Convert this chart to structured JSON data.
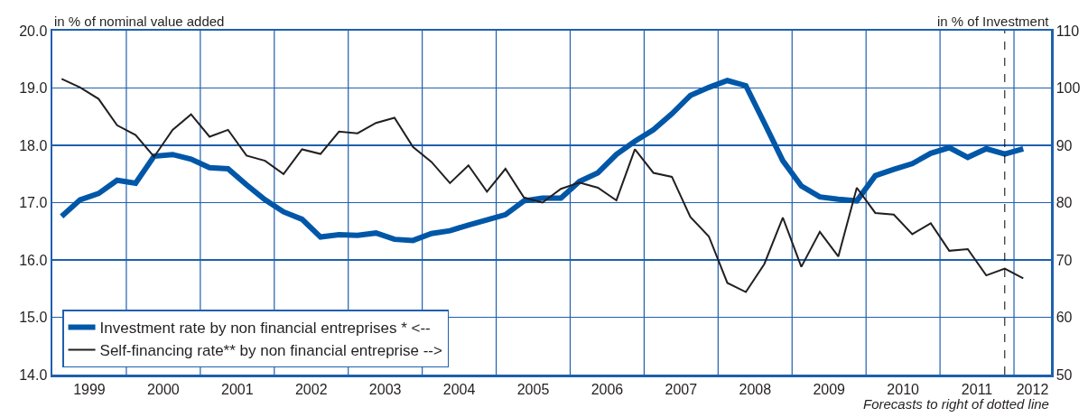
{
  "chart_data": {
    "type": "line",
    "ylabel": "in % of nominal value added",
    "y2label": "in % of Investment",
    "annotations": [
      "Forecasts to right of dotted line"
    ],
    "x": [
      1999.125,
      1999.375,
      1999.625,
      1999.875,
      2000.125,
      2000.375,
      2000.625,
      2000.875,
      2001.125,
      2001.375,
      2001.625,
      2001.875,
      2002.125,
      2002.375,
      2002.625,
      2002.875,
      2003.125,
      2003.375,
      2003.625,
      2003.875,
      2004.125,
      2004.375,
      2004.625,
      2004.875,
      2005.125,
      2005.375,
      2005.625,
      2005.875,
      2006.125,
      2006.375,
      2006.625,
      2006.875,
      2007.125,
      2007.375,
      2007.625,
      2007.875,
      2008.125,
      2008.375,
      2008.625,
      2008.875,
      2009.125,
      2009.375,
      2009.625,
      2009.875,
      2010.125,
      2010.375,
      2010.625,
      2010.875,
      2011.125,
      2011.375,
      2011.625,
      2011.875,
      2012.125
    ],
    "series": [
      {
        "name": "Investment rate by non financial entreprises * <--",
        "color": "#0057a8",
        "values": [
          16.76,
          17.05,
          17.16,
          17.39,
          17.34,
          17.81,
          17.84,
          17.76,
          17.61,
          17.59,
          17.31,
          17.05,
          16.84,
          16.71,
          16.4,
          16.44,
          16.43,
          16.47,
          16.36,
          16.34,
          16.46,
          16.51,
          16.61,
          16.7,
          16.79,
          17.03,
          17.08,
          17.08,
          17.37,
          17.52,
          17.84,
          18.07,
          18.27,
          18.55,
          18.87,
          19.01,
          19.13,
          19.04,
          18.39,
          17.73,
          17.29,
          17.1,
          17.06,
          17.03,
          17.47,
          17.58,
          17.68,
          17.86,
          17.96,
          17.79,
          17.94,
          17.85,
          17.94
        ]
      },
      {
        "name": "Self-financing rate** by non financial entreprise -->",
        "color": "#231f20",
        "axis": "y2",
        "values": [
          101.6,
          100.1,
          98.1,
          93.5,
          91.8,
          88.0,
          92.7,
          95.4,
          91.5,
          92.7,
          88.2,
          87.3,
          85.0,
          89.3,
          88.5,
          92.4,
          92.1,
          93.9,
          94.8,
          89.7,
          87.1,
          83.4,
          86.5,
          81.9,
          85.9,
          80.9,
          80.0,
          82.4,
          83.5,
          82.6,
          80.4,
          89.3,
          85.2,
          84.5,
          77.5,
          74.1,
          66.0,
          64.4,
          69.3,
          77.4,
          68.8,
          74.9,
          70.6,
          82.6,
          78.2,
          77.9,
          74.5,
          76.4,
          71.6,
          71.9,
          67.3,
          68.5,
          66.8
        ]
      }
    ],
    "xlim": [
      1999,
      2012.5
    ],
    "xticks": [
      {
        "value": 1999.5,
        "label": "1999"
      },
      {
        "value": 2000,
        "label": null
      },
      {
        "value": 2000.5,
        "label": "2000"
      },
      {
        "value": 2001,
        "label": null
      },
      {
        "value": 2001.5,
        "label": "2001"
      },
      {
        "value": 2002,
        "label": null
      },
      {
        "value": 2002.5,
        "label": "2002"
      },
      {
        "value": 2003,
        "label": null
      },
      {
        "value": 2003.5,
        "label": "2003"
      },
      {
        "value": 2004,
        "label": null
      },
      {
        "value": 2004.5,
        "label": "2004"
      },
      {
        "value": 2005,
        "label": null
      },
      {
        "value": 2005.5,
        "label": "2005"
      },
      {
        "value": 2006,
        "label": null
      },
      {
        "value": 2006.5,
        "label": "2006"
      },
      {
        "value": 2007,
        "label": null
      },
      {
        "value": 2007.5,
        "label": "2007"
      },
      {
        "value": 2008,
        "label": null
      },
      {
        "value": 2008.5,
        "label": "2008"
      },
      {
        "value": 2009,
        "label": null
      },
      {
        "value": 2009.5,
        "label": "2009"
      },
      {
        "value": 2010,
        "label": null
      },
      {
        "value": 2010.5,
        "label": "2010"
      },
      {
        "value": 2011,
        "label": null
      },
      {
        "value": 2011.5,
        "label": "2011"
      },
      {
        "value": 2012,
        "label": null
      },
      {
        "value": 2012.25,
        "label": "2012"
      }
    ],
    "ylim": [
      14,
      20
    ],
    "yticks": [
      {
        "value": 14,
        "label": "14.0"
      },
      {
        "value": 15,
        "label": "15.0"
      },
      {
        "value": 16,
        "label": "16.0"
      },
      {
        "value": 17,
        "label": "17.0"
      },
      {
        "value": 18,
        "label": "18.0"
      },
      {
        "value": 19,
        "label": "19.0"
      },
      {
        "value": 20,
        "label": "20.0"
      }
    ],
    "y2lim": [
      50,
      110
    ],
    "y2ticks": [
      50,
      60,
      70,
      80,
      90,
      100,
      110
    ],
    "ref_lines": [
      {
        "axis": "x",
        "value": 2011.875,
        "color": "#000000",
        "line_style": "dashed"
      }
    ],
    "grid": true,
    "legend": "bottom left",
    "marker": "none",
    "line_style": "solid"
  }
}
